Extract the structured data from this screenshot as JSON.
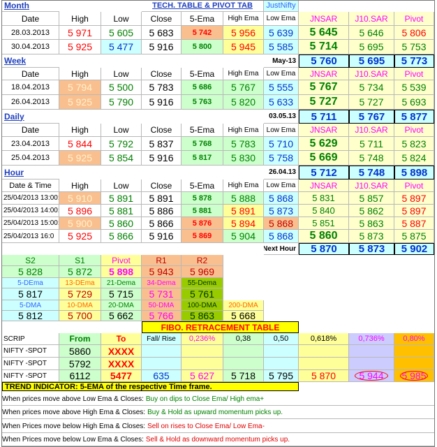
{
  "rows": [
    [
      "Month",
      "TECH. TABLE  &  PIVOT TAB",
      "JustNifty"
    ],
    [
      "Date",
      "High",
      "Low",
      "Close",
      "5-Ema",
      "High Ema",
      "Low Ema",
      "JNSAR",
      "J10.SAR",
      "Pivot"
    ],
    [
      "28.03.2013",
      "5 971",
      "5 605",
      "5 683",
      "5 742",
      "5 956",
      "5 639",
      "5 645",
      "5 646",
      "5 806"
    ],
    [
      "30.04.2013",
      "5 925",
      "5 477",
      "5 916",
      "5 800",
      "5 945",
      "5 585",
      "5 714",
      "5 695",
      "5 753"
    ],
    [
      "Week",
      "May-13",
      "5 760",
      "5 695",
      "5 773"
    ],
    [
      "Date",
      "High",
      "Low",
      "Close",
      "5-Ema",
      "High Ema",
      "Low Ema",
      "JNSAR",
      "J10.SAR",
      "Pivot"
    ],
    [
      "18.04.2013",
      "5 794",
      "5 500",
      "5 783",
      "5 686",
      "5 767",
      "5 555",
      "5 767",
      "5 734",
      "5 539"
    ],
    [
      "26.04.2013",
      "5 925",
      "5 790",
      "5 916",
      "5 763",
      "5 820",
      "5 633",
      "5 727",
      "5 727",
      "5 693"
    ],
    [
      "Daily",
      "03.05.13",
      "5 711",
      "5 767",
      "5 877"
    ],
    [
      "Date",
      "High",
      "Low",
      "Close",
      "5-Ema",
      "High Ema",
      "Low Ema",
      "JNSAR",
      "J10.SAR",
      "Pivot"
    ],
    [
      "23.04.2013",
      "5 844",
      "5 792",
      "5 837",
      "5 768",
      "5 783",
      "5 710",
      "5 629",
      "5 711",
      "5 823"
    ],
    [
      "25.04.2013",
      "5 925",
      "5 854",
      "5 916",
      "5 817",
      "5 830",
      "5 758",
      "5 669",
      "5 748",
      "5 824"
    ],
    [
      "Hour",
      "26.04.13",
      "5 712",
      "5 748",
      "5 898"
    ],
    [
      "Date & Time",
      "High",
      "Low",
      "Close",
      "5-Ema",
      "High Ema",
      "Low Ema",
      "JNSAR",
      "J10.SAR",
      "Pivot"
    ],
    [
      "25/04/2013 13:00:",
      "5 910",
      "5 891",
      "5 891",
      "5 878",
      "5 888",
      "5 868",
      "5 831",
      "5 857",
      "5 897"
    ],
    [
      "25/04/2013 14:00:",
      "5 896",
      "5 881",
      "5 886",
      "5 881",
      "5 891",
      "5 873",
      "5 840",
      "5 862",
      "5 897"
    ],
    [
      "25/04/2013 15:00:",
      "5 900",
      "5 860",
      "5 866",
      "5 876",
      "5 894",
      "5 868",
      "5 851",
      "5 863",
      "5 887"
    ],
    [
      "25/04/2013 16:0",
      "5 925",
      "5 866",
      "5 916",
      "5 869",
      "5 904",
      "5 868",
      "5 860",
      "5 873",
      "5 875"
    ],
    [
      "Next Hour",
      "5 870",
      "5 873",
      "5 902"
    ],
    [
      "S2",
      "S1",
      "Pivot",
      "R1",
      "R2"
    ],
    [
      "5 828",
      "5 872",
      "5 898",
      "5 943",
      "5 969"
    ],
    [
      "5-DEma",
      "13-DEma",
      "21-Dema",
      "34-Dema",
      "55-Dema"
    ],
    [
      "5 817",
      "5 729",
      "5 715",
      "5 731",
      "5 761"
    ],
    [
      "5-DMA",
      "10-DMA",
      "20-DMA",
      "50-DMA",
      "100-DMA",
      "200-DMA"
    ],
    [
      "5 812",
      "5 700",
      "5 662",
      "5 766",
      "5 863",
      "5 668"
    ],
    [
      "FIBO. RETRACEMENT TABLE"
    ],
    [
      "SCRIP",
      "From",
      "To",
      "Fall/ Rise",
      "0,236%",
      "0,38",
      "0,50",
      "0,618%",
      "0,736%",
      "0,80%"
    ],
    [
      "NIFTY -SPOT",
      "5860",
      "XXXX"
    ],
    [
      "NIFTY -SPOT",
      "5792",
      "XXXX"
    ],
    [
      "NIFTY -SPOT",
      "6112",
      "5477",
      "635",
      "5 627",
      "5 718",
      "5 795",
      "5 870",
      "5 944",
      "5 985"
    ],
    [
      "TREND INDICATOR: 5-EMA of the respective Time frame."
    ]
  ],
  "notes": [
    {
      "lead": "When prices move above Low Ema & Closes:",
      "advice": "Buy on dips to Close Ema/ High ema+"
    },
    {
      "lead": "When prices move above High Ema & Closes:",
      "advice": "Buy & Hold as upward momentum picks up."
    },
    {
      "lead": "When Prices move below High Ema & Closes:",
      "advice": "Sell on rises to Close Ema/ Low Ema-"
    },
    {
      "lead": "When Prices move below Low Ema & Closes:",
      "advice": "Sell & Hold as downward momentum picks up."
    }
  ]
}
